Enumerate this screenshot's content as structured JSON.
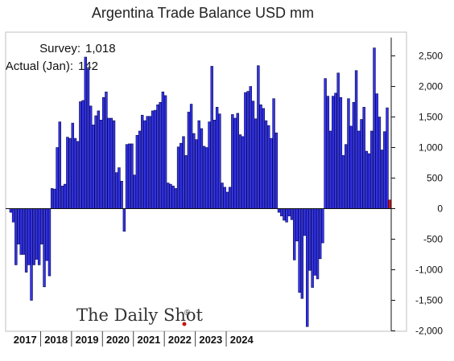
{
  "chart_data": {
    "type": "bar",
    "title": "Argentina Trade Balance USD mm",
    "xlabel": "",
    "ylabel": "",
    "ylim": [
      -2000,
      2800
    ],
    "yticks": [
      -2000,
      -1500,
      -1000,
      -500,
      0,
      500,
      1000,
      1500,
      2000,
      2500
    ],
    "ytick_labels": [
      "-2,000",
      "-1,500",
      "-1,000",
      "-500",
      "0",
      "500",
      "1,000",
      "1,500",
      "2,000",
      "2,500"
    ],
    "year_labels": [
      "2017",
      "2018",
      "2019",
      "2020",
      "2021",
      "2022",
      "2023",
      "2024"
    ],
    "start": "2017-01",
    "series": [
      {
        "values": [
          -60,
          -220,
          -920,
          -580,
          -750,
          -750,
          -1040,
          -920,
          -1500,
          -920,
          -830,
          -920,
          -580,
          -1280,
          -850,
          -1100,
          330,
          320,
          1000,
          1420,
          370,
          400,
          1170,
          1150,
          1400,
          1150,
          1100,
          1750,
          1770,
          2480,
          2290,
          1680,
          1370,
          1520,
          1600,
          1450,
          1820,
          1910,
          1480,
          1480,
          1440,
          590,
          670,
          450,
          -370,
          1050,
          1060,
          1060,
          550,
          1200,
          1270,
          1530,
          1440,
          1510,
          1510,
          1600,
          1610,
          1700,
          1740,
          1910,
          1850,
          420,
          400,
          370,
          330,
          1010,
          1070,
          1180,
          870,
          1580,
          1710,
          1230,
          1130,
          1440,
          1310,
          1020,
          1000,
          1420,
          2330,
          1450,
          1660,
          1550,
          420,
          350,
          270,
          350,
          1540,
          1480,
          1560,
          1210,
          1180,
          1900,
          1920,
          2000,
          1760,
          1470,
          2340,
          1700,
          1640,
          1440,
          1360,
          1150,
          1800,
          1240,
          -60,
          -120,
          -190,
          -220,
          -120,
          -180,
          -840,
          -530,
          -1370,
          -1470,
          -440,
          -1930,
          -1010,
          -1290,
          -1090,
          -1150,
          -820,
          -560,
          2130,
          1840,
          1270,
          1840,
          1890,
          2220,
          1820,
          870,
          1050,
          1800,
          1350,
          1740,
          2260,
          1270,
          1460,
          1660,
          940,
          900,
          1270,
          2630,
          1880,
          1500,
          960,
          1260,
          1650
        ],
        "color": "#3333ee"
      }
    ],
    "highlight": {
      "label": "Actual (Jan)",
      "value": 142,
      "color": "#dd1111"
    },
    "grid": false,
    "legend": "none"
  },
  "annotations": {
    "survey_label": "Survey:",
    "survey_value": "1,018",
    "actual_label": "Actual (Jan):",
    "actual_value": "142"
  },
  "watermark": "The Daily Shot",
  "watermark_mark": "®"
}
